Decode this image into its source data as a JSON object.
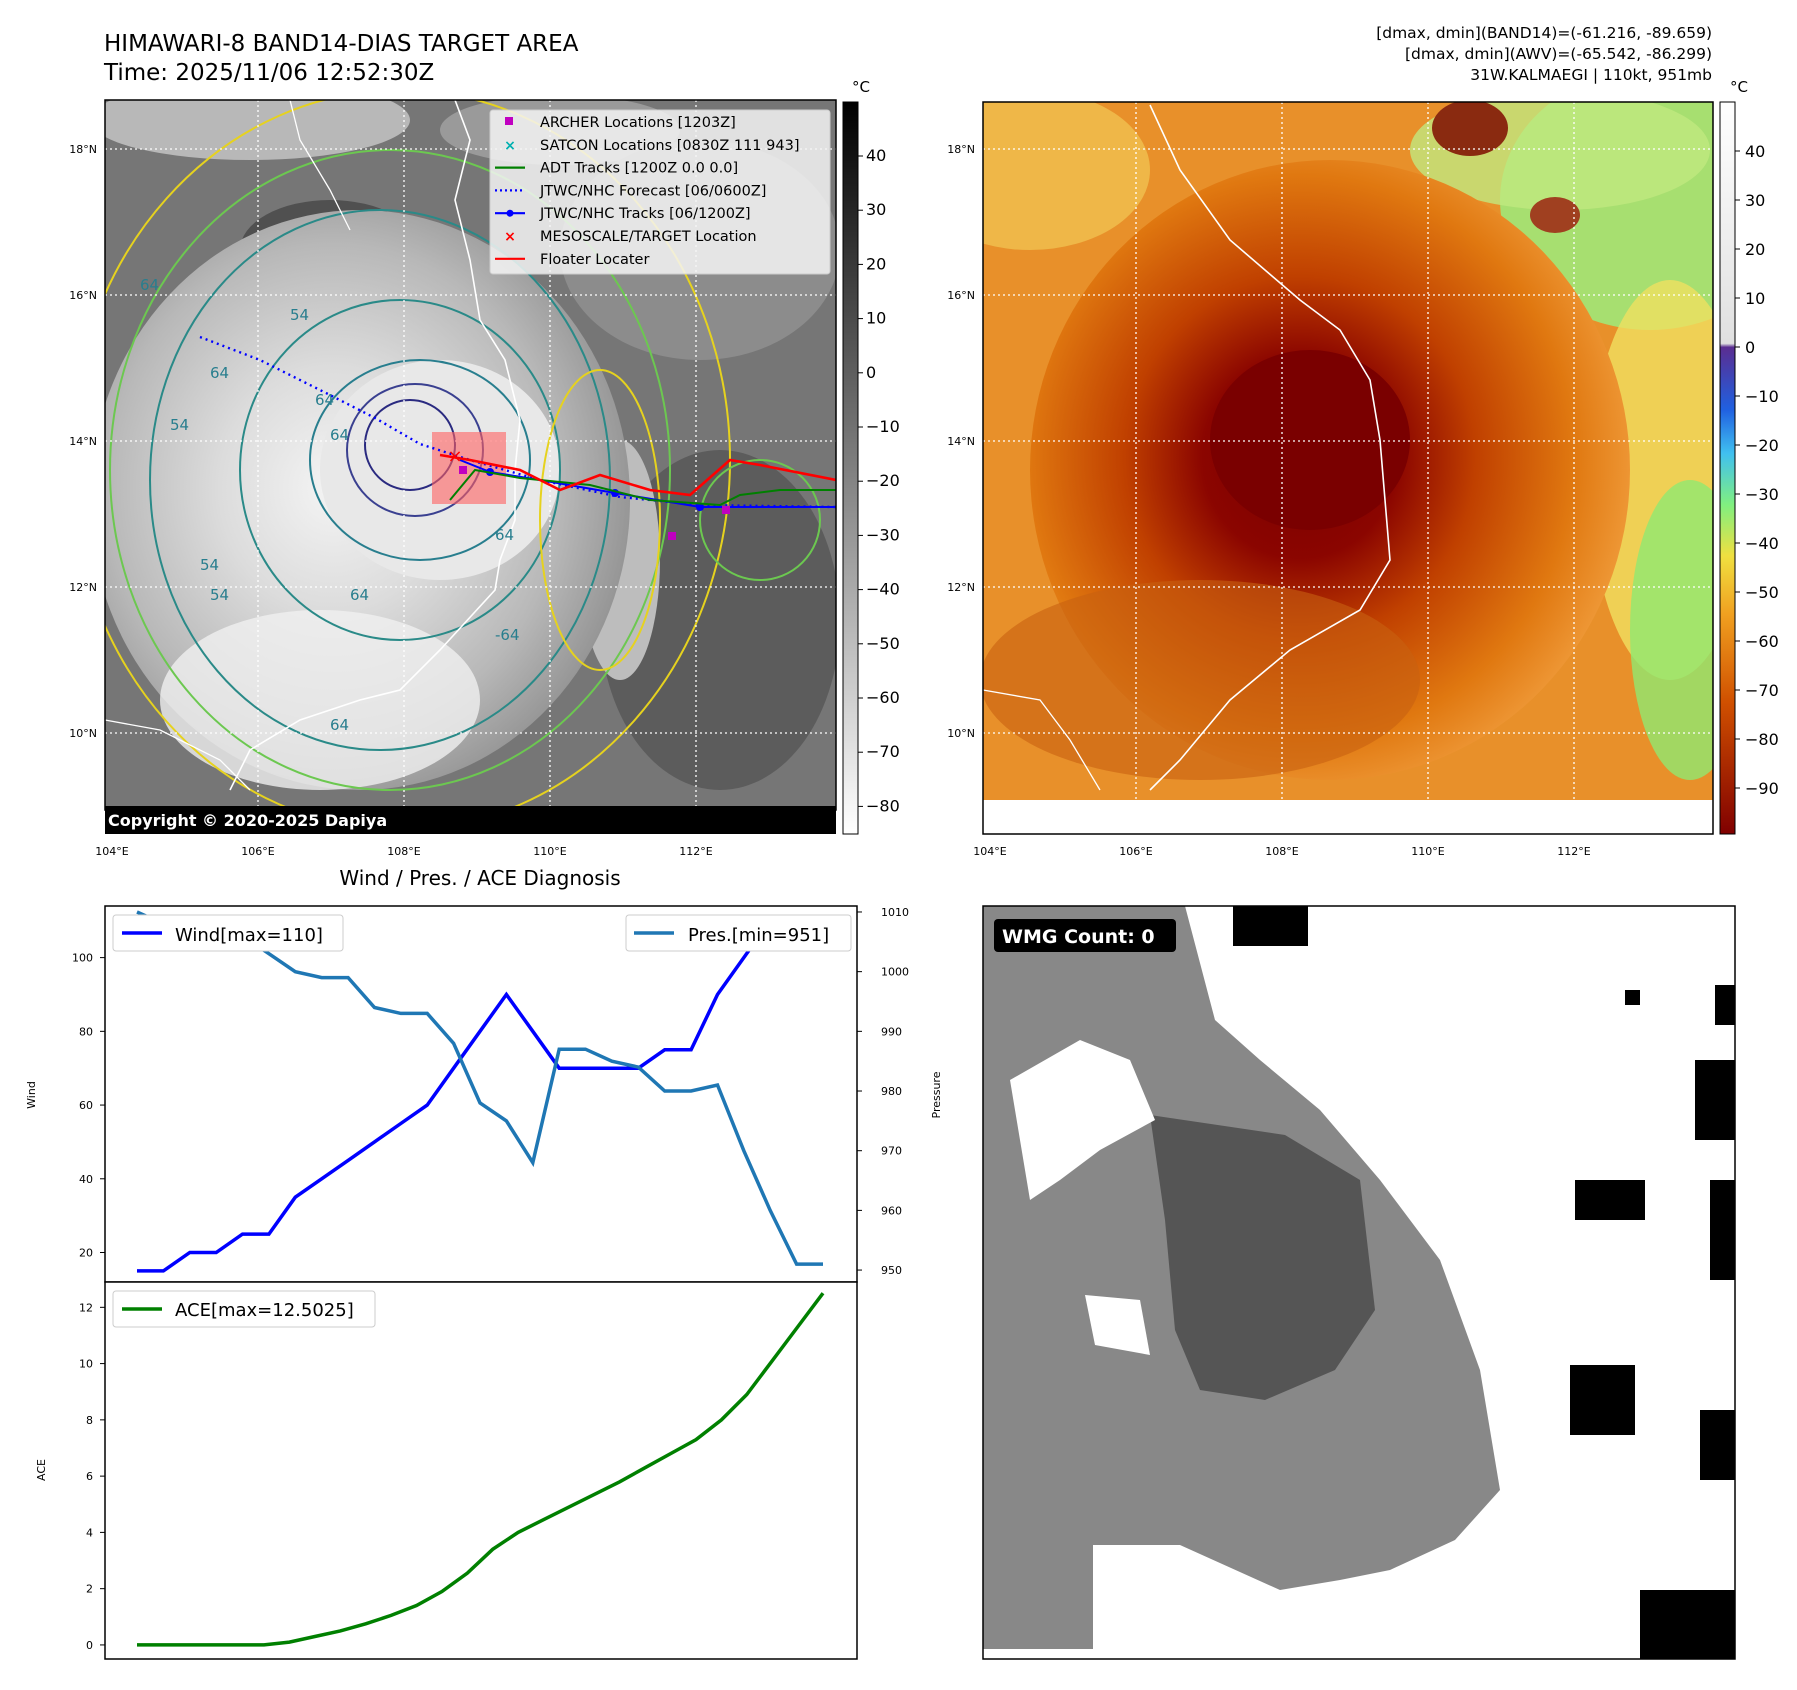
{
  "header": {
    "title": "HIMAWARI-8 BAND14-DIAS TARGET AREA",
    "time": "Time: 2025/11/06 12:52:30Z",
    "dmax_band14": "[dmax, dmin](BAND14)=(-61.216, -89.659)",
    "dmax_awv": "[dmax, dmin](AWV)=(-65.542, -86.299)",
    "storm": "31W.KALMAEGI | 110kt, 951mb"
  },
  "map_axes": {
    "lon_labels": [
      "104°E",
      "106°E",
      "108°E",
      "110°E",
      "112°E"
    ],
    "lat_labels": [
      "18°N",
      "16°N",
      "14°N",
      "12°N",
      "10°N"
    ]
  },
  "ir_colorbar": {
    "unit": "°C",
    "ticks": [
      "40",
      "30",
      "20",
      "10",
      "0",
      "−10",
      "−20",
      "−30",
      "−40",
      "−50",
      "−60",
      "−70",
      "−80"
    ]
  },
  "awv_colorbar": {
    "unit": "°C",
    "ticks": [
      "40",
      "30",
      "20",
      "10",
      "0",
      "−10",
      "−20",
      "−30",
      "−40",
      "−50",
      "−60",
      "−70",
      "−80",
      "−90"
    ]
  },
  "contour_labels": [
    "64",
    "54",
    "64",
    "64",
    "54",
    "64",
    "54",
    "64",
    "-64",
    "54",
    "64",
    "64"
  ],
  "legend": {
    "items": [
      {
        "label": "ARCHER Locations [1203Z]",
        "color": "#c000c0",
        "marker": "square"
      },
      {
        "label": "SATCON Locations [0830Z 111 943]",
        "color": "#00b0b0",
        "marker": "x"
      },
      {
        "label": "ADT Tracks [1200Z 0.0 0.0]",
        "color": "#008000",
        "marker": "line"
      },
      {
        "label": "JTWC/NHC Forecast [06/0600Z]",
        "color": "#0000ff",
        "marker": "dotted"
      },
      {
        "label": "JTWC/NHC Tracks [06/1200Z]",
        "color": "#0000ff",
        "marker": "line-dot"
      },
      {
        "label": "MESOSCALE/TARGET Location",
        "color": "#ff0000",
        "marker": "x"
      },
      {
        "label": "Floater Locater",
        "color": "#ff0000",
        "marker": "line"
      }
    ]
  },
  "copyright": "Copyright © 2020-2025 Dapiya",
  "diagnosis_title": "Wind / Pres. / ACE Diagnosis",
  "wmg_label": "WMG Count: 0",
  "chart_data": [
    {
      "type": "line",
      "title": "Wind / Pres. / ACE Diagnosis",
      "ylabel": "Wind",
      "ylabel_right": "Pressure",
      "ylim": [
        12,
        114
      ],
      "ylim_right": [
        948,
        1011
      ],
      "yticks": [
        20,
        40,
        60,
        80,
        100
      ],
      "yticks_right": [
        950,
        960,
        970,
        980,
        990,
        1000,
        1010
      ],
      "legend": "top-left / top-right",
      "series": [
        {
          "name": "Wind[max=110]",
          "color": "#0000ff",
          "axis": "left",
          "values": [
            15,
            15,
            20,
            20,
            25,
            25,
            35,
            40,
            45,
            50,
            55,
            60,
            70,
            80,
            90,
            80,
            70,
            70,
            70,
            70,
            75,
            75,
            90,
            100,
            110,
            110,
            110
          ]
        },
        {
          "name": "Pres.[min=951]",
          "color": "#1f77b4",
          "axis": "right",
          "values": [
            1010,
            1008,
            1008,
            1007,
            1006,
            1003,
            1000,
            999,
            999,
            994,
            993,
            993,
            988,
            978,
            975,
            968,
            987,
            987,
            985,
            984,
            980,
            980,
            981,
            970,
            960,
            951,
            951
          ]
        }
      ]
    },
    {
      "type": "line",
      "ylabel": "ACE",
      "ylim": [
        -0.5,
        12.9
      ],
      "yticks": [
        0,
        2,
        4,
        6,
        8,
        10,
        12
      ],
      "legend": "top-left",
      "series": [
        {
          "name": "ACE[max=12.5025]",
          "color": "#008000",
          "values": [
            0,
            0,
            0,
            0,
            0,
            0,
            0.1,
            0.3,
            0.5,
            0.75,
            1.05,
            1.4,
            1.9,
            2.55,
            3.4,
            4.0,
            4.45,
            4.9,
            5.35,
            5.8,
            6.3,
            6.8,
            7.3,
            8.0,
            8.9,
            10.1,
            11.3,
            12.5025
          ]
        }
      ]
    }
  ]
}
